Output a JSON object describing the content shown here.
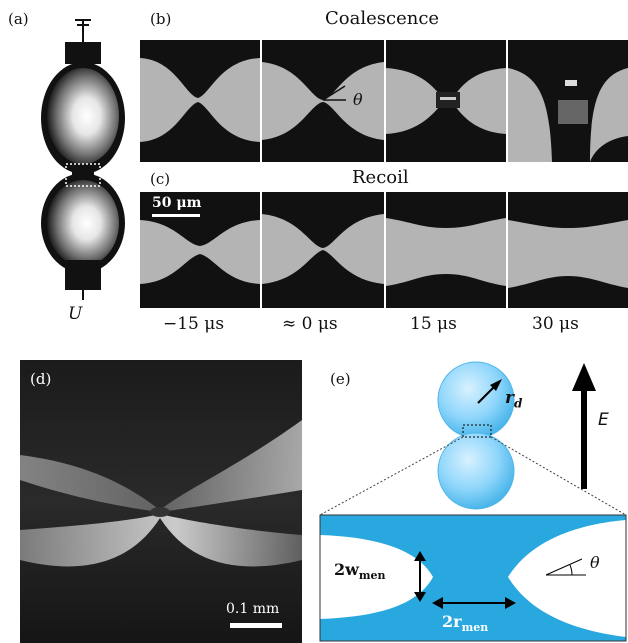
{
  "panels": {
    "a": {
      "label": "(a)",
      "voltage_label": "U"
    },
    "b": {
      "label": "(b)",
      "title": "Coalescence",
      "angle_symbol": "θ"
    },
    "c": {
      "label": "(c)",
      "title": "Recoil",
      "scale_bar": "50 μm"
    },
    "times": [
      "−15 μs",
      "≈ 0 μs",
      "15 μs",
      "30 μs"
    ],
    "d": {
      "label": "(d)",
      "scale_bar": "0.1 mm"
    },
    "e": {
      "label": "(e)",
      "radius_label": "r",
      "radius_sub": "d",
      "field_label": "E",
      "width_label": "2w",
      "width_sub": "men",
      "neck_label": "2r",
      "neck_sub": "men",
      "angle_symbol": "θ"
    }
  },
  "colors": {
    "accent_blue": "#29a8e0",
    "arrow_black": "#000000"
  }
}
